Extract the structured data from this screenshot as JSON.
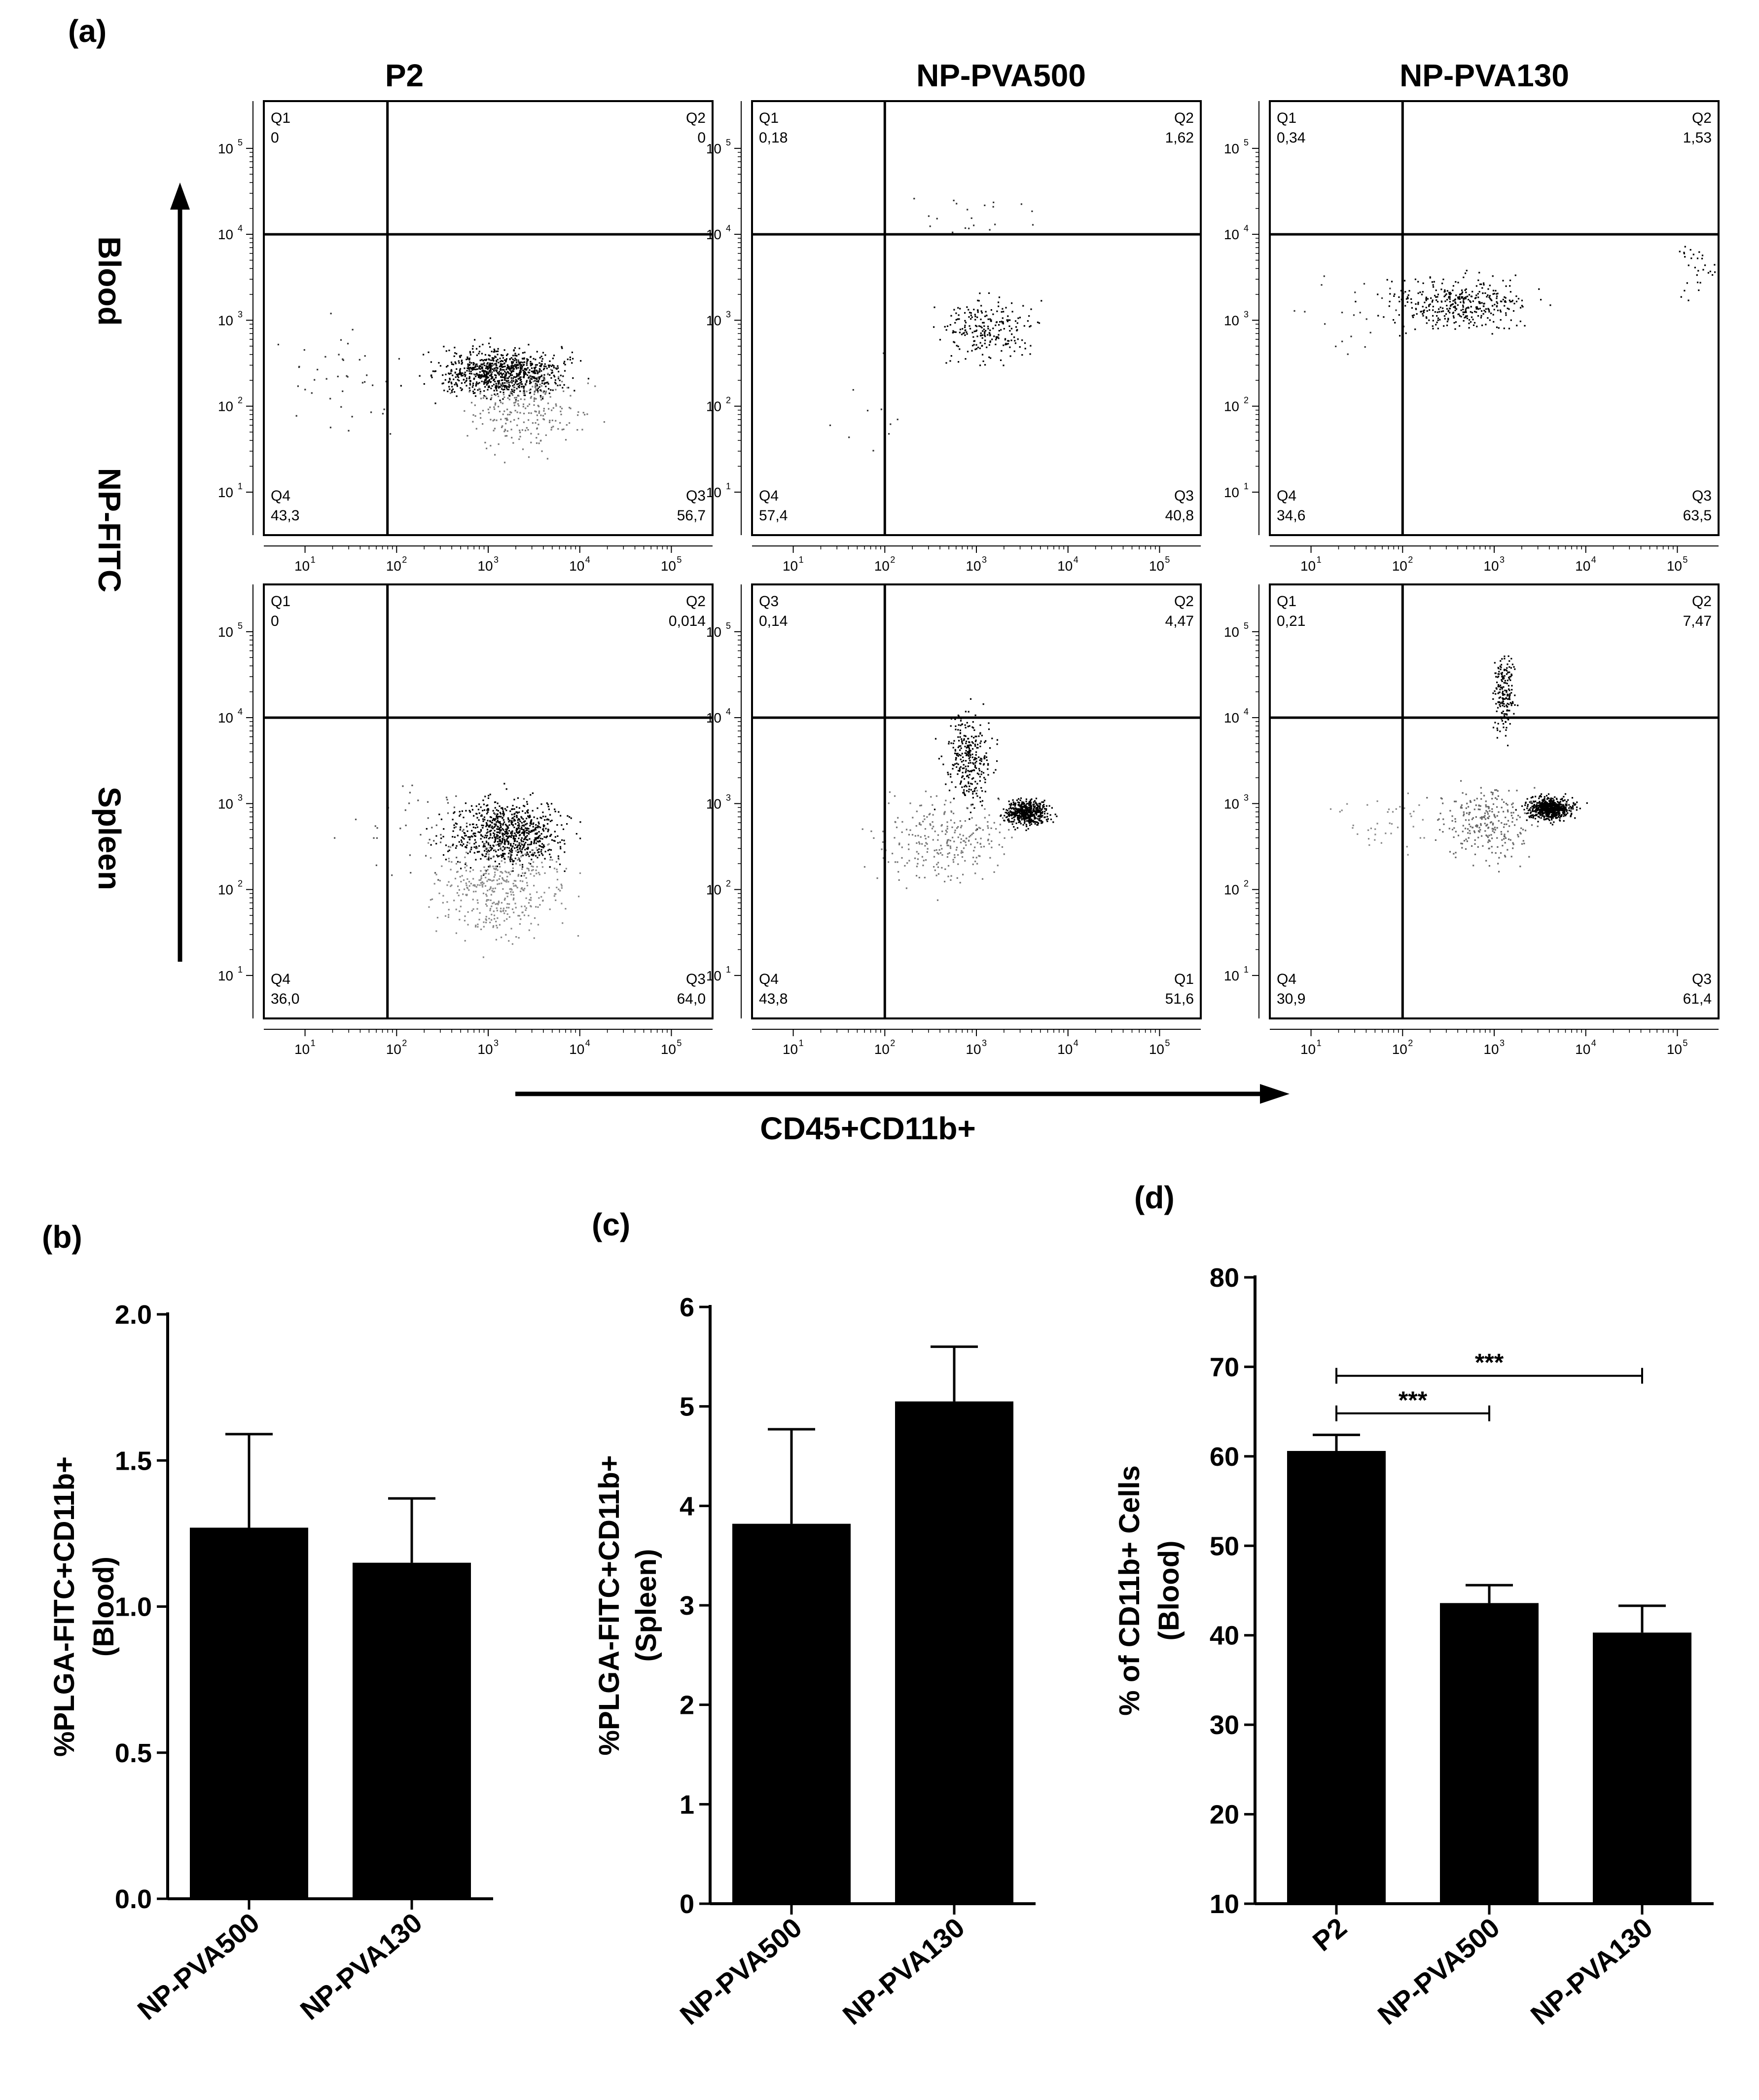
{
  "panel_labels": {
    "a": "(a)",
    "b": "(b)",
    "c": "(c)",
    "d": "(d)"
  },
  "flow": {
    "column_titles": [
      "P2",
      "NP-PVA500",
      "NP-PVA130"
    ],
    "row_labels": [
      "Blood",
      "NP-FITC",
      "Spleen"
    ],
    "x_axis_label": "CD45+CD11b+",
    "x_ticks": [
      "10",
      "10",
      "10",
      "10",
      "10"
    ],
    "x_tick_exps": [
      "1",
      "2",
      "3",
      "4",
      "5"
    ],
    "y_ticks": [
      "10",
      "10",
      "10",
      "10",
      "10"
    ],
    "y_tick_exps": [
      "1",
      "2",
      "3",
      "4",
      "5"
    ],
    "plots": [
      {
        "row": 0,
        "col": 0,
        "gate_x_log": 1.9,
        "gate_y_log": 4.0,
        "q_tl": {
          "name": "Q1",
          "value": "0"
        },
        "q_tr": {
          "name": "Q2",
          "value": "0"
        },
        "q_bl": {
          "name": "Q4",
          "value": "43,3"
        },
        "q_br": {
          "name": "Q3",
          "value": "56,7"
        }
      },
      {
        "row": 0,
        "col": 1,
        "gate_x_log": 2.0,
        "gate_y_log": 4.0,
        "q_tl": {
          "name": "Q1",
          "value": "0,18"
        },
        "q_tr": {
          "name": "Q2",
          "value": "1,62"
        },
        "q_bl": {
          "name": "Q4",
          "value": "57,4"
        },
        "q_br": {
          "name": "Q3",
          "value": "40,8"
        }
      },
      {
        "row": 0,
        "col": 2,
        "gate_x_log": 2.0,
        "gate_y_log": 4.0,
        "q_tl": {
          "name": "Q1",
          "value": "0,34"
        },
        "q_tr": {
          "name": "Q2",
          "value": "1,53"
        },
        "q_bl": {
          "name": "Q4",
          "value": "34,6"
        },
        "q_br": {
          "name": "Q3",
          "value": "63,5"
        }
      },
      {
        "row": 1,
        "col": 0,
        "gate_x_log": 1.9,
        "gate_y_log": 4.0,
        "q_tl": {
          "name": "Q1",
          "value": "0"
        },
        "q_tr": {
          "name": "Q2",
          "value": "0,014"
        },
        "q_bl": {
          "name": "Q4",
          "value": "36,0"
        },
        "q_br": {
          "name": "Q3",
          "value": "64,0"
        }
      },
      {
        "row": 1,
        "col": 1,
        "gate_x_log": 2.0,
        "gate_y_log": 4.0,
        "q_tl": {
          "name": "Q3",
          "value": "0,14"
        },
        "q_tr": {
          "name": "Q2",
          "value": "4,47"
        },
        "q_bl": {
          "name": "Q4",
          "value": "43,8"
        },
        "q_br": {
          "name": "Q1",
          "value": "51,6"
        }
      },
      {
        "row": 1,
        "col": 2,
        "gate_x_log": 2.0,
        "gate_y_log": 4.0,
        "q_tl": {
          "name": "Q1",
          "value": "0,21"
        },
        "q_tr": {
          "name": "Q2",
          "value": "7,47"
        },
        "q_bl": {
          "name": "Q4",
          "value": "30,9"
        },
        "q_br": {
          "name": "Q3",
          "value": "61,4"
        }
      }
    ]
  },
  "chart_data": [
    {
      "id": "b",
      "type": "bar",
      "categories": [
        "NP-PVA500",
        "NP-PVA130"
      ],
      "values": [
        1.27,
        1.15
      ],
      "errors": [
        0.32,
        0.22
      ],
      "ylabel": "%PLGA-FITC+CD11b+",
      "ylabel2": "(Blood)",
      "ylim": [
        0,
        2.0
      ],
      "yticks": [
        "0.0",
        "0.5",
        "1.0",
        "1.5",
        "2.0"
      ],
      "ytick_values": [
        0,
        0.5,
        1.0,
        1.5,
        2.0
      ],
      "significance": []
    },
    {
      "id": "c",
      "type": "bar",
      "categories": [
        "NP-PVA500",
        "NP-PVA130"
      ],
      "values": [
        3.82,
        5.05
      ],
      "errors": [
        0.95,
        0.55
      ],
      "ylabel": "%PLGA-FITC+CD11b+",
      "ylabel2": "(Spleen)",
      "ylim": [
        0,
        6
      ],
      "yticks": [
        "0",
        "1",
        "2",
        "3",
        "4",
        "5",
        "6"
      ],
      "ytick_values": [
        0,
        1,
        2,
        3,
        4,
        5,
        6
      ],
      "significance": []
    },
    {
      "id": "d",
      "type": "bar",
      "categories": [
        "P2",
        "NP-PVA500",
        "NP-PVA130"
      ],
      "values": [
        60.6,
        43.6,
        40.3
      ],
      "errors": [
        1.8,
        2.0,
        3.0
      ],
      "ylabel": "% of CD11b+ Cells",
      "ylabel2": "(Blood)",
      "ylim": [
        10,
        80
      ],
      "yticks": [
        "10",
        "20",
        "30",
        "40",
        "50",
        "60",
        "70",
        "80"
      ],
      "ytick_values": [
        10,
        20,
        30,
        40,
        50,
        60,
        70,
        80
      ],
      "significance": [
        {
          "from": 0,
          "to": 2,
          "label": "***",
          "y": 69
        },
        {
          "from": 0,
          "to": 1,
          "label": "***",
          "y": 64.8
        }
      ]
    }
  ]
}
